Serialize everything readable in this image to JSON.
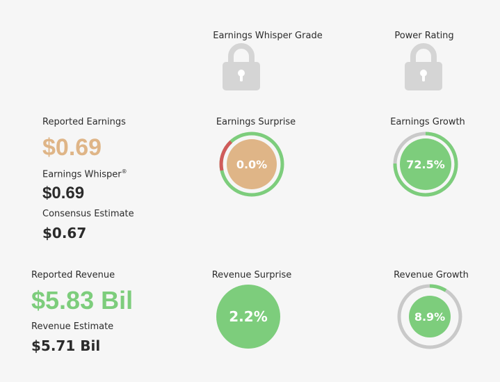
{
  "grades": {
    "whisper_grade_label": "Earnings Whisper Grade",
    "whisper_grade_icon": "lock-icon",
    "power_rating_label": "Power Rating",
    "power_rating_icon": "lock-icon"
  },
  "earnings": {
    "reported_label": "Reported Earnings",
    "reported_value": "$0.69",
    "whisper_label": "Earnings Whisper",
    "whisper_mark": "®",
    "whisper_value": "$0.69",
    "consensus_label": "Consensus Estimate",
    "consensus_value": "$0.67",
    "surprise_label": "Earnings Surprise",
    "surprise_value": "0.0%",
    "growth_label": "Earnings Growth",
    "growth_value": "72.5%"
  },
  "revenue": {
    "reported_label": "Reported Revenue",
    "reported_value": "$5.83 Bil",
    "estimate_label": "Revenue Estimate",
    "estimate_value": "$5.71 Bil",
    "surprise_label": "Revenue Surprise",
    "surprise_value": "2.2%",
    "growth_label": "Revenue Growth",
    "growth_value": "8.9%"
  },
  "colors": {
    "green": "#7dcd7c",
    "tan": "#dfb587",
    "red": "#d05b5b",
    "gray": "#c9c9c9",
    "lock": "#d5d5d5"
  }
}
